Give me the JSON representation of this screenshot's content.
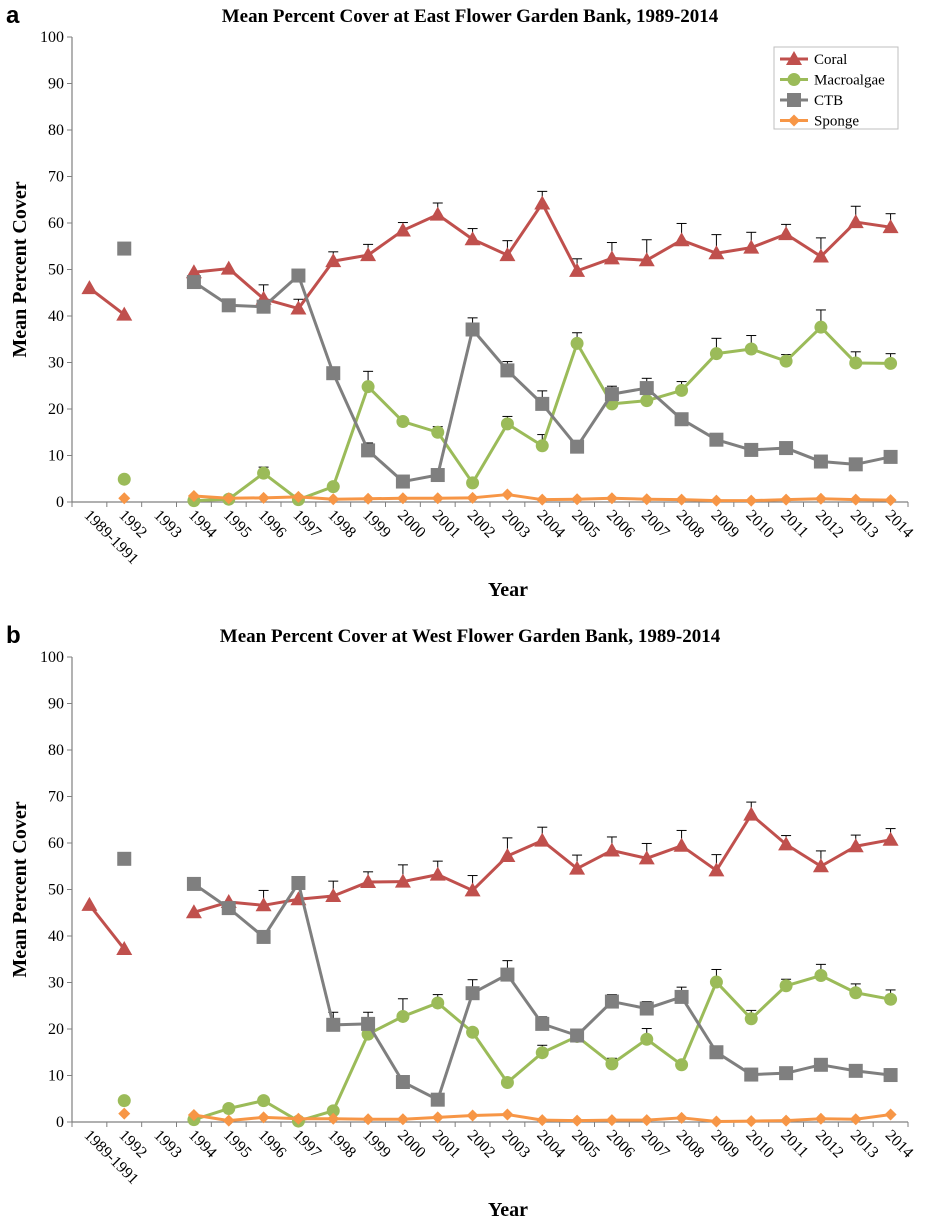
{
  "panels": [
    {
      "letter": "a"
    },
    {
      "letter": "b"
    }
  ],
  "colors": {
    "coral": "#c0504d",
    "macroalgae": "#9bbb59",
    "ctb": "#7f7f7f",
    "sponge": "#f79646"
  },
  "chart_data": [
    {
      "type": "line",
      "title": "Mean Percent Cover at East Flower Garden Bank, 1989-2014",
      "xlabel": "Year",
      "ylabel": "Mean Percent Cover",
      "ylim": [
        0,
        100
      ],
      "yticks": [
        0,
        10,
        20,
        30,
        40,
        50,
        60,
        70,
        80,
        90,
        100
      ],
      "categories": [
        "1989-1991",
        "1992",
        "1993",
        "1994",
        "1995",
        "1996",
        "1997",
        "1998",
        "1999",
        "2000",
        "2001",
        "2002",
        "2003",
        "2004",
        "2005",
        "2006",
        "2007",
        "2008",
        "2009",
        "2010",
        "2011",
        "2012",
        "2013",
        "2014"
      ],
      "legend_position": "top-right",
      "series": [
        {
          "name": "Coral",
          "marker": "triangle",
          "color_key": "coral",
          "values": [
            46,
            40.3,
            null,
            49.4,
            50.2,
            43.7,
            41.6,
            51.8,
            53.1,
            58.4,
            61.8,
            56.5,
            53.1,
            64.2,
            49.7,
            52.4,
            52.0,
            56.3,
            53.5,
            54.7,
            57.6,
            52.8,
            60.2,
            59.1
          ],
          "errors": [
            null,
            null,
            null,
            null,
            null,
            3,
            2,
            2,
            2.3,
            1.7,
            2.5,
            2.3,
            3.1,
            2.6,
            2.6,
            3.4,
            4.4,
            3.6,
            4.0,
            3.3,
            2.1,
            4.0,
            3.4,
            2.9
          ]
        },
        {
          "name": "Macroalgae",
          "marker": "circle",
          "color_key": "macroalgae",
          "values": [
            null,
            4.9,
            null,
            0.3,
            0.6,
            6.2,
            0.5,
            3.3,
            24.8,
            17.3,
            15.0,
            4.1,
            16.8,
            12.1,
            34.1,
            21.1,
            21.8,
            24.0,
            31.9,
            32.9,
            30.3,
            37.6,
            29.9,
            29.8
          ],
          "errors": [
            null,
            null,
            null,
            null,
            null,
            1.3,
            null,
            null,
            3.3,
            null,
            1.2,
            null,
            1.6,
            2.4,
            2.3,
            1.3,
            1.5,
            1.9,
            3.3,
            2.9,
            1.4,
            3.7,
            2.4,
            2.1
          ]
        },
        {
          "name": "CTB",
          "marker": "square",
          "color_key": "ctb",
          "values": [
            null,
            54.5,
            null,
            47.3,
            42.3,
            42.0,
            48.7,
            27.7,
            11.1,
            4.4,
            5.8,
            37.1,
            28.3,
            21.1,
            11.9,
            23.2,
            24.5,
            17.8,
            13.4,
            11.2,
            11.6,
            8.7,
            8.1,
            9.7
          ],
          "errors": [
            null,
            null,
            null,
            null,
            null,
            null,
            null,
            null,
            1.6,
            null,
            null,
            2.5,
            1.9,
            2.8,
            null,
            1.7,
            2.1,
            1.2,
            null,
            null,
            null,
            null,
            null,
            null
          ]
        },
        {
          "name": "Sponge",
          "marker": "diamond",
          "color_key": "sponge",
          "values": [
            null,
            0.8,
            null,
            1.3,
            0.8,
            0.9,
            1.1,
            0.6,
            0.7,
            0.8,
            0.8,
            0.9,
            1.6,
            0.5,
            0.6,
            0.8,
            0.6,
            0.5,
            0.3,
            0.3,
            0.5,
            0.7,
            0.5,
            0.4
          ],
          "errors": [
            null,
            null,
            null,
            null,
            null,
            null,
            null,
            null,
            null,
            null,
            null,
            null,
            null,
            null,
            null,
            null,
            null,
            null,
            null,
            null,
            null,
            null,
            null,
            null
          ]
        }
      ]
    },
    {
      "type": "line",
      "title": "Mean Percent Cover at West Flower Garden Bank, 1989-2014",
      "xlabel": "Year",
      "ylabel": "Mean Percent Cover",
      "ylim": [
        0,
        100
      ],
      "yticks": [
        0,
        10,
        20,
        30,
        40,
        50,
        60,
        70,
        80,
        90,
        100
      ],
      "categories": [
        "1989-1991",
        "1992",
        "1993",
        "1994",
        "1995",
        "1996",
        "1997",
        "1998",
        "1999",
        "2000",
        "2001",
        "2002",
        "2003",
        "2004",
        "2005",
        "2006",
        "2007",
        "2008",
        "2009",
        "2010",
        "2011",
        "2012",
        "2013",
        "2014"
      ],
      "series": [
        {
          "name": "Coral",
          "marker": "triangle",
          "color_key": "coral",
          "values": [
            46.7,
            37.2,
            null,
            45.1,
            47.3,
            46.6,
            47.9,
            48.6,
            51.6,
            51.7,
            53.2,
            49.8,
            57.2,
            60.5,
            54.5,
            58.4,
            56.7,
            59.4,
            54.1,
            66.1,
            59.7,
            55.0,
            59.3,
            60.7
          ],
          "errors": [
            null,
            null,
            null,
            null,
            null,
            3.2,
            null,
            3.2,
            2.2,
            3.6,
            2.9,
            3.2,
            3.9,
            2.9,
            2.9,
            2.9,
            3.2,
            3.3,
            3.4,
            2.7,
            1.9,
            3.3,
            2.4,
            2.4
          ]
        },
        {
          "name": "Macroalgae",
          "marker": "circle",
          "color_key": "macroalgae",
          "values": [
            null,
            4.6,
            null,
            0.5,
            2.9,
            4.6,
            0.2,
            2.4,
            18.9,
            22.7,
            25.6,
            19.3,
            8.5,
            14.9,
            18.4,
            12.5,
            17.8,
            12.3,
            30.1,
            22.2,
            29.3,
            31.5,
            27.8,
            26.4
          ],
          "errors": [
            null,
            null,
            null,
            null,
            null,
            null,
            null,
            null,
            null,
            3.8,
            1.8,
            null,
            null,
            1.6,
            null,
            1.2,
            2.3,
            null,
            2.7,
            1.8,
            1.4,
            2.4,
            1.9,
            2.0
          ]
        },
        {
          "name": "CTB",
          "marker": "square",
          "color_key": "ctb",
          "values": [
            null,
            56.6,
            null,
            51.2,
            46.0,
            39.8,
            51.4,
            20.9,
            21.1,
            8.6,
            4.8,
            27.7,
            31.7,
            21.1,
            18.6,
            25.9,
            24.4,
            26.9,
            15.0,
            10.2,
            10.5,
            12.3,
            11.0,
            10.1
          ],
          "errors": [
            null,
            null,
            null,
            null,
            null,
            null,
            null,
            2.7,
            2.5,
            null,
            null,
            2.9,
            3.0,
            1.5,
            1.3,
            1.5,
            1.5,
            2.1,
            null,
            null,
            null,
            null,
            null,
            null
          ]
        },
        {
          "name": "Sponge",
          "marker": "diamond",
          "color_key": "sponge",
          "values": [
            null,
            1.8,
            null,
            1.5,
            0.3,
            1.0,
            0.7,
            0.7,
            0.6,
            0.6,
            1.0,
            1.4,
            1.6,
            0.4,
            0.3,
            0.4,
            0.4,
            0.9,
            0.1,
            0.2,
            0.3,
            0.7,
            0.6,
            1.6
          ],
          "errors": [
            null,
            null,
            null,
            null,
            null,
            null,
            null,
            null,
            null,
            null,
            null,
            null,
            null,
            null,
            null,
            null,
            null,
            null,
            null,
            null,
            null,
            null,
            null,
            null
          ]
        }
      ]
    }
  ]
}
